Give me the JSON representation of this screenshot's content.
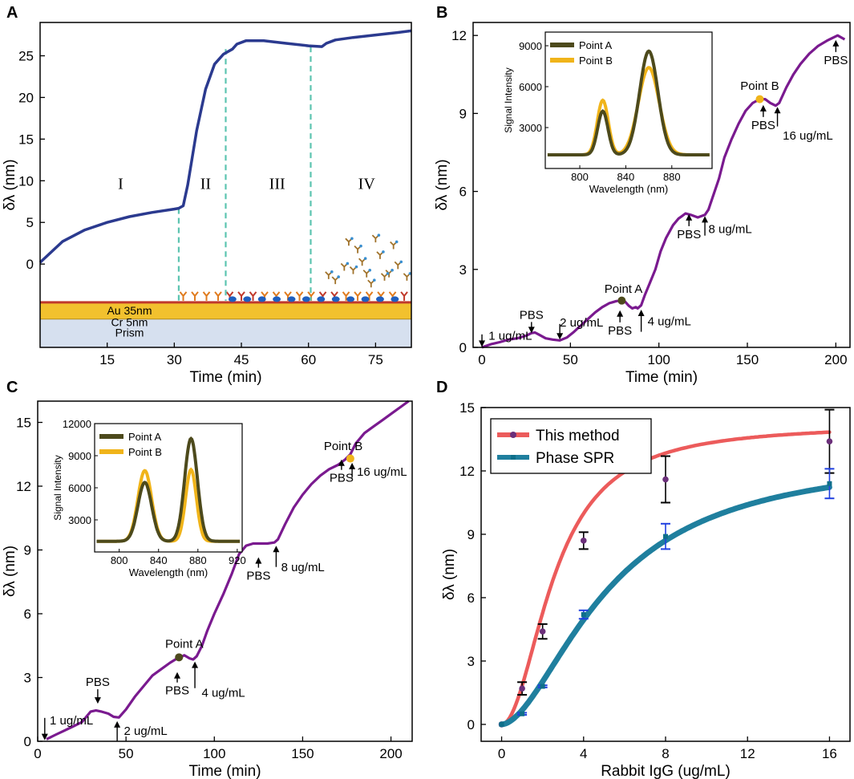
{
  "colors": {
    "purple": "#7a1a8f",
    "navy": "#2b3a8f",
    "dashed": "#5cc4b0",
    "olive": "#4d4a1c",
    "gold": "#f0b41a",
    "red": "#ec5b5b",
    "teal": "#1f7f9e",
    "blue": "#1f3fe0",
    "gold_layer": "#f2c12e",
    "au_line": "#c0392b",
    "prism": "#d6e0ef"
  },
  "chart_data": [
    {
      "panel": "A",
      "type": "line",
      "xlabel": "Time (min)",
      "ylabel": "δλ (nm)",
      "xlim": [
        0,
        83
      ],
      "ylim": [
        -10,
        29
      ],
      "xticks": [
        15,
        30,
        45,
        60,
        75
      ],
      "yticks": [
        0,
        5,
        10,
        15,
        20,
        25
      ],
      "series": [
        {
          "name": "signal",
          "x": [
            0,
            5,
            10,
            15,
            20,
            25,
            30,
            31,
            32,
            33,
            35,
            37,
            39,
            41,
            43,
            44,
            46,
            50,
            55,
            60,
            63,
            64,
            66,
            70,
            75,
            80,
            83
          ],
          "y": [
            0.2,
            2.7,
            4.1,
            5.0,
            5.7,
            6.2,
            6.6,
            6.7,
            7.0,
            9.5,
            16,
            21,
            24,
            25.2,
            25.8,
            26.4,
            26.8,
            26.8,
            26.5,
            26.2,
            26.1,
            26.5,
            26.9,
            27.2,
            27.5,
            27.8,
            28.0
          ]
        }
      ],
      "region_labels": [
        {
          "text": "I",
          "x": 18,
          "y": 9
        },
        {
          "text": "II",
          "x": 37,
          "y": 9
        },
        {
          "text": "III",
          "x": 53,
          "y": 9
        },
        {
          "text": "IV",
          "x": 73,
          "y": 9
        }
      ],
      "dividers_x": [
        31,
        41.5,
        60.5
      ],
      "layers": [
        {
          "name": "au",
          "label": "Au 35nm"
        },
        {
          "name": "cr",
          "label": "Cr 5nm"
        },
        {
          "name": "prism",
          "label": "Prism"
        }
      ]
    },
    {
      "panel": "B",
      "type": "line",
      "xlabel": "Time (min)",
      "ylabel": "δλ (nm)",
      "xlim": [
        -5,
        208
      ],
      "ylim": [
        0,
        12.5
      ],
      "xticks": [
        0,
        50,
        100,
        150,
        200
      ],
      "yticks": [
        0,
        3,
        6,
        9,
        12
      ],
      "series": [
        {
          "name": "signal",
          "x": [
            0,
            5,
            10,
            15,
            20,
            25,
            28,
            30,
            32,
            36,
            40,
            44,
            48,
            52,
            56,
            60,
            64,
            68,
            72,
            76,
            79,
            81,
            83,
            85,
            87,
            88,
            90,
            92,
            95,
            98,
            101,
            104,
            108,
            111,
            113,
            115,
            118,
            122,
            126,
            128,
            131,
            134,
            137,
            141,
            145,
            149,
            153,
            157,
            160,
            163,
            166,
            168,
            172,
            176,
            180,
            185,
            190,
            195,
            198,
            201,
            205
          ],
          "y": [
            0,
            0.12,
            0.2,
            0.3,
            0.35,
            0.45,
            0.55,
            0.57,
            0.5,
            0.35,
            0.3,
            0.27,
            0.38,
            0.6,
            0.85,
            1.1,
            1.35,
            1.55,
            1.7,
            1.78,
            1.8,
            1.75,
            1.6,
            1.5,
            1.55,
            1.5,
            1.62,
            2.0,
            2.5,
            3.0,
            3.7,
            4.2,
            4.7,
            4.95,
            5.05,
            5.15,
            5.1,
            5.0,
            5.1,
            5.3,
            5.9,
            6.5,
            7.3,
            8.0,
            8.6,
            9.1,
            9.4,
            9.55,
            9.55,
            9.4,
            9.3,
            9.4,
            10.0,
            10.5,
            10.9,
            11.3,
            11.6,
            11.8,
            11.9,
            12.0,
            11.85
          ]
        }
      ],
      "annotations": [
        {
          "text": "1 ug/mL",
          "x": 1,
          "y": 0.3
        },
        {
          "text": "PBS",
          "x": 28,
          "y": 1.1
        },
        {
          "text": "2 ug/mL",
          "x": 44,
          "y": 0.8
        },
        {
          "text": "Point A",
          "x": 80,
          "y": 2.1
        },
        {
          "text": "PBS",
          "x": 78,
          "y": 0.5
        },
        {
          "text": "4 ug/mL",
          "x": 90,
          "y": 0.85
        },
        {
          "text": "PBS",
          "x": 117,
          "y": 4.2
        },
        {
          "text": "8 ug/mL",
          "x": 128,
          "y": 4.4
        },
        {
          "text": "Point B",
          "x": 157,
          "y": 9.9
        },
        {
          "text": "PBS",
          "x": 159,
          "y": 8.4
        },
        {
          "text": "16 ug/mL",
          "x": 170,
          "y": 8.0
        },
        {
          "text": "PBS",
          "x": 200,
          "y": 10.9
        }
      ],
      "inset": {
        "xlabel": "Wavelength (nm)",
        "ylabel": "Signal Intensity",
        "xlim": [
          770,
          915
        ],
        "ylim": [
          0,
          10000
        ],
        "xticks": [
          800,
          840,
          880
        ],
        "yticks": [
          3000,
          6000,
          9000
        ],
        "legend": [
          "Point A",
          "Point B"
        ],
        "series": [
          {
            "name": "Point A",
            "peaks": [
              [
                820,
                4200,
                4.5
              ],
              [
                860,
                8600,
                8
              ]
            ],
            "baseline": 1000
          },
          {
            "name": "Point B",
            "peaks": [
              [
                820,
                5000,
                4.8
              ],
              [
                860,
                7400,
                9
              ]
            ],
            "baseline": 1000
          }
        ]
      }
    },
    {
      "panel": "C",
      "type": "line",
      "xlabel": "Time (min)",
      "ylabel": "δλ (nm)",
      "xlim": [
        0,
        212
      ],
      "ylim": [
        0,
        16
      ],
      "xticks": [
        0,
        50,
        100,
        150,
        200
      ],
      "yticks": [
        0,
        3,
        6,
        9,
        12,
        15
      ],
      "series": [
        {
          "name": "signal",
          "x": [
            5,
            10,
            15,
            20,
            25,
            28,
            30,
            33,
            36,
            40,
            43,
            46,
            50,
            55,
            60,
            65,
            70,
            75,
            79,
            81,
            83,
            86,
            88,
            90,
            93,
            96,
            100,
            105,
            110,
            114,
            118,
            122,
            126,
            130,
            134,
            136,
            140,
            145,
            150,
            155,
            160,
            165,
            170,
            174,
            177,
            180,
            185,
            190,
            195,
            200,
            205,
            210
          ],
          "y": [
            0.1,
            0.3,
            0.5,
            0.7,
            0.9,
            1.2,
            1.4,
            1.45,
            1.4,
            1.3,
            1.15,
            1.12,
            1.5,
            2.1,
            2.6,
            3.1,
            3.4,
            3.7,
            3.9,
            3.95,
            4.05,
            3.9,
            3.85,
            4.0,
            4.5,
            5.2,
            6.0,
            6.9,
            7.9,
            8.8,
            9.2,
            9.3,
            9.3,
            9.3,
            9.35,
            9.5,
            10.2,
            11.0,
            11.6,
            12.1,
            12.5,
            12.8,
            13.0,
            13.25,
            13.5,
            14.0,
            14.5,
            14.8,
            15.1,
            15.4,
            15.7,
            16.0
          ]
        }
      ],
      "annotations": [
        {
          "text": "1 ug/mL",
          "x": 5,
          "y": 0.8
        },
        {
          "text": "PBS",
          "x": 34,
          "y": 2.6
        },
        {
          "text": "2 ug/mL",
          "x": 47,
          "y": 0.3
        },
        {
          "text": "Point A",
          "x": 83,
          "y": 4.4
        },
        {
          "text": "PBS",
          "x": 79,
          "y": 2.2
        },
        {
          "text": "4 ug/mL",
          "x": 91,
          "y": 2.1
        },
        {
          "text": "PBS",
          "x": 125,
          "y": 7.6
        },
        {
          "text": "8 ug/mL",
          "x": 136,
          "y": 8.0
        },
        {
          "text": "Point B",
          "x": 173,
          "y": 13.7
        },
        {
          "text": "PBS",
          "x": 172,
          "y": 12.2
        },
        {
          "text": "16 ug/mL",
          "x": 178,
          "y": 12.5
        }
      ],
      "inset": {
        "xlabel": "Wavelength (nm)",
        "ylabel": "Signal Intensity",
        "xlim": [
          775,
          925
        ],
        "ylim": [
          0,
          12000
        ],
        "xticks": [
          800,
          840,
          880,
          920
        ],
        "yticks": [
          3000,
          6000,
          9000,
          12000
        ],
        "legend": [
          "Point A",
          "Point B"
        ],
        "series": [
          {
            "name": "Point A",
            "peaks": [
              [
                826,
                6500,
                7
              ],
              [
                873,
                10600,
                6.5
              ]
            ],
            "baseline": 1000
          },
          {
            "name": "Point B",
            "peaks": [
              [
                826,
                7600,
                7
              ],
              [
                873,
                7700,
                5.5
              ]
            ],
            "baseline": 1000
          }
        ]
      }
    },
    {
      "panel": "D",
      "type": "line",
      "xlabel": "Rabbit IgG (ug/mL)",
      "ylabel": "δλ (nm)",
      "xlim": [
        -1,
        17
      ],
      "ylim": [
        -0.8,
        15
      ],
      "xticks": [
        0,
        4,
        8,
        12,
        16
      ],
      "yticks": [
        0,
        3,
        6,
        9,
        12,
        15
      ],
      "legend": [
        "This method",
        "Phase SPR"
      ],
      "series": [
        {
          "name": "This method",
          "fit": {
            "vmax": 14.2,
            "k": 2.6,
            "n": 2.0
          },
          "points": [
            {
              "x": 0,
              "y": 0,
              "err": 0
            },
            {
              "x": 1,
              "y": 1.7,
              "err": 0.3
            },
            {
              "x": 2,
              "y": 4.4,
              "err": 0.35
            },
            {
              "x": 4,
              "y": 8.7,
              "err": 0.4
            },
            {
              "x": 8,
              "y": 11.6,
              "err": 1.1
            },
            {
              "x": 16,
              "y": 13.4,
              "err": 1.5
            }
          ]
        },
        {
          "name": "Phase SPR",
          "fit": {
            "vmax": 12.8,
            "k": 5.2,
            "n": 1.75
          },
          "points": [
            {
              "x": 0,
              "y": 0,
              "err": 0
            },
            {
              "x": 1,
              "y": 0.5,
              "err": 0.05
            },
            {
              "x": 2,
              "y": 1.8,
              "err": 0.05
            },
            {
              "x": 4,
              "y": 5.2,
              "err": 0.2
            },
            {
              "x": 8,
              "y": 8.9,
              "err": 0.6
            },
            {
              "x": 16,
              "y": 11.4,
              "err": 0.7
            }
          ]
        }
      ]
    }
  ],
  "panel_letters": [
    "A",
    "B",
    "C",
    "D"
  ]
}
